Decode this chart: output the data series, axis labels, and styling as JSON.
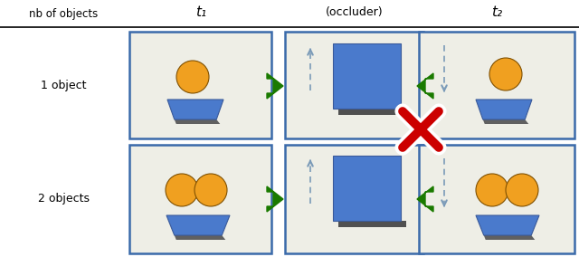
{
  "bg_color": "#ffffff",
  "panel_bg": "#eeeee6",
  "panel_border": "#3a6aaa",
  "ball_color": "#f0a020",
  "ball_shadow": "#808060",
  "platform_color": "#4a7acc",
  "platform_dark": "#3a5a9a",
  "platform_shadow": "#606060",
  "occluder_color": "#4a7acc",
  "occluder_shadow": "#505050",
  "arrow_green": "#1a7a00",
  "dashed_arrow_color": "#7a9ab8",
  "cross_red": "#cc0000",
  "header_line_color": "#000000",
  "col_headers": [
    "nb of objects",
    "t₁",
    "(occluder)",
    "t₂"
  ],
  "row_labels": [
    "1 object",
    "2 objects"
  ],
  "figw": 6.4,
  "figh": 2.84
}
